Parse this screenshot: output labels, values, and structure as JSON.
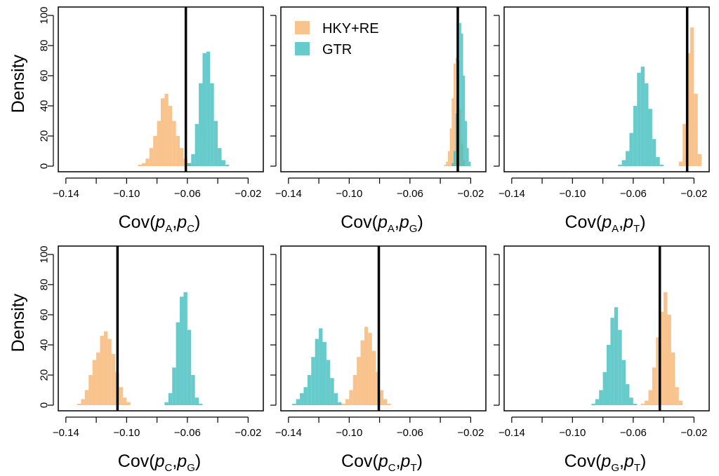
{
  "colors": {
    "hky": "#f6b26b",
    "gtr": "#3cbcbe",
    "reference_line": "#000000"
  },
  "legend": [
    {
      "label": "HKY+RE",
      "series": "hky"
    },
    {
      "label": "GTR",
      "series": "gtr"
    }
  ],
  "chart_data": [
    {
      "type": "bar",
      "xlabel": {
        "prefix": "Cov(p",
        "sub1": "A",
        "mid": ",p",
        "sub2": "C",
        "suffix": ")"
      },
      "ylabel": "Density",
      "xlim": [
        -0.145,
        -0.01
      ],
      "ylim": [
        0,
        100
      ],
      "xticks": [
        -0.14,
        -0.12,
        -0.1,
        -0.08,
        -0.06,
        -0.04,
        -0.02
      ],
      "xtick_labels": [
        "-0.14",
        "",
        "-0.10",
        "",
        "-0.06",
        "",
        "-0.02"
      ],
      "yticks": [
        0,
        20,
        40,
        60,
        80,
        100
      ],
      "ytick_labels": [
        "0",
        "20",
        "40",
        "60",
        "80",
        "100"
      ],
      "bin_width": 0.0025,
      "reference_x": -0.061,
      "series": [
        {
          "key": "hky",
          "bin_start": -0.0925,
          "values": [
            1,
            2,
            5,
            12,
            20,
            30,
            45,
            48,
            40,
            30,
            20,
            12,
            5,
            2
          ]
        },
        {
          "key": "gtr",
          "bin_start": -0.06,
          "values": [
            2,
            8,
            28,
            55,
            75,
            76,
            55,
            30,
            12,
            4,
            1
          ]
        }
      ]
    },
    {
      "type": "bar",
      "xlabel": {
        "prefix": "Cov(p",
        "sub1": "A",
        "mid": ",p",
        "sub2": "G",
        "suffix": ")"
      },
      "ylabel": "",
      "xlim": [
        -0.145,
        -0.01
      ],
      "ylim": [
        0,
        100
      ],
      "xticks": [
        -0.14,
        -0.12,
        -0.1,
        -0.08,
        -0.06,
        -0.04,
        -0.02
      ],
      "xtick_labels": [
        "-0.14",
        "",
        "-0.10",
        "",
        "-0.06",
        "",
        "-0.02"
      ],
      "yticks": [
        0,
        20,
        40,
        60,
        80,
        100
      ],
      "ytick_labels": [],
      "bin_width": 0.00125,
      "reference_x": -0.0285,
      "series": [
        {
          "key": "hky",
          "bin_start": -0.0375,
          "values": [
            1,
            3,
            10,
            25,
            45,
            68,
            72,
            60,
            38,
            15,
            4
          ]
        },
        {
          "key": "gtr",
          "bin_start": -0.0325,
          "values": [
            2,
            10,
            35,
            70,
            95,
            88,
            60,
            30,
            12,
            3
          ]
        }
      ]
    },
    {
      "type": "bar",
      "xlabel": {
        "prefix": "Cov(p",
        "sub1": "A",
        "mid": ",p",
        "sub2": "T",
        "suffix": ")"
      },
      "ylabel": "",
      "xlim": [
        -0.145,
        -0.01
      ],
      "ylim": [
        0,
        100
      ],
      "xticks": [
        -0.14,
        -0.12,
        -0.1,
        -0.08,
        -0.06,
        -0.04,
        -0.02
      ],
      "xtick_labels": [
        "-0.14",
        "",
        "-0.10",
        "",
        "-0.06",
        "",
        "-0.02"
      ],
      "yticks": [
        0,
        20,
        40,
        60,
        80,
        100
      ],
      "ytick_labels": [],
      "bin_width": 0.0025,
      "reference_x": -0.0245,
      "series": [
        {
          "key": "gtr",
          "bin_start": -0.07,
          "values": [
            1,
            4,
            10,
            22,
            40,
            62,
            66,
            55,
            38,
            18,
            6,
            1
          ]
        },
        {
          "key": "hky",
          "bin_start": -0.03,
          "values": [
            3,
            28,
            75,
            92,
            48,
            8
          ]
        }
      ]
    },
    {
      "type": "bar",
      "xlabel": {
        "prefix": "Cov(p",
        "sub1": "C",
        "mid": ",p",
        "sub2": "G",
        "suffix": ")"
      },
      "ylabel": "Density",
      "xlim": [
        -0.145,
        -0.01
      ],
      "ylim": [
        0,
        100
      ],
      "xticks": [
        -0.14,
        -0.12,
        -0.1,
        -0.08,
        -0.06,
        -0.04,
        -0.02
      ],
      "xtick_labels": [
        "-0.14",
        "",
        "-0.10",
        "",
        "-0.06",
        "",
        "-0.02"
      ],
      "yticks": [
        0,
        20,
        40,
        60,
        80,
        100
      ],
      "ytick_labels": [
        "0",
        "20",
        "40",
        "60",
        "80",
        "100"
      ],
      "bin_width": 0.0025,
      "reference_x": -0.106,
      "series": [
        {
          "key": "hky",
          "bin_start": -0.1325,
          "values": [
            1,
            4,
            10,
            20,
            30,
            35,
            46,
            49,
            44,
            34,
            22,
            12,
            5,
            2
          ]
        },
        {
          "key": "gtr",
          "bin_start": -0.075,
          "values": [
            2,
            8,
            25,
            55,
            72,
            75,
            50,
            20,
            5,
            1
          ]
        }
      ]
    },
    {
      "type": "bar",
      "xlabel": {
        "prefix": "Cov(p",
        "sub1": "C",
        "mid": ",p",
        "sub2": "T",
        "suffix": ")"
      },
      "ylabel": "",
      "xlim": [
        -0.145,
        -0.01
      ],
      "ylim": [
        0,
        100
      ],
      "xticks": [
        -0.14,
        -0.12,
        -0.1,
        -0.08,
        -0.06,
        -0.04,
        -0.02
      ],
      "xtick_labels": [
        "-0.14",
        "",
        "-0.10",
        "",
        "-0.06",
        "",
        "-0.02"
      ],
      "yticks": [
        0,
        20,
        40,
        60,
        80,
        100
      ],
      "ytick_labels": [],
      "bin_width": 0.0025,
      "reference_x": -0.0805,
      "series": [
        {
          "key": "gtr",
          "bin_start": -0.1375,
          "values": [
            1,
            4,
            8,
            12,
            20,
            32,
            44,
            51,
            42,
            30,
            18,
            8,
            2
          ]
        },
        {
          "key": "hky",
          "bin_start": -0.105,
          "values": [
            1,
            4,
            10,
            20,
            32,
            43,
            52,
            48,
            36,
            22,
            10,
            4,
            1
          ]
        }
      ]
    },
    {
      "type": "bar",
      "xlabel": {
        "prefix": "Cov(p",
        "sub1": "G",
        "mid": ",p",
        "sub2": "T",
        "suffix": ")"
      },
      "ylabel": "",
      "xlim": [
        -0.145,
        -0.01
      ],
      "ylim": [
        0,
        100
      ],
      "xticks": [
        -0.14,
        -0.12,
        -0.1,
        -0.08,
        -0.06,
        -0.04,
        -0.02
      ],
      "xtick_labels": [
        "-0.14",
        "",
        "-0.10",
        "",
        "-0.06",
        "",
        "-0.02"
      ],
      "yticks": [
        0,
        20,
        40,
        60,
        80,
        100
      ],
      "ytick_labels": [],
      "bin_width": 0.0025,
      "reference_x": -0.0425,
      "series": [
        {
          "key": "gtr",
          "bin_start": -0.0875,
          "values": [
            1,
            4,
            10,
            22,
            40,
            58,
            65,
            50,
            30,
            14,
            5,
            1
          ]
        },
        {
          "key": "hky",
          "bin_start": -0.055,
          "values": [
            1,
            3,
            10,
            25,
            45,
            62,
            75,
            60,
            35,
            12,
            3
          ]
        }
      ]
    }
  ]
}
